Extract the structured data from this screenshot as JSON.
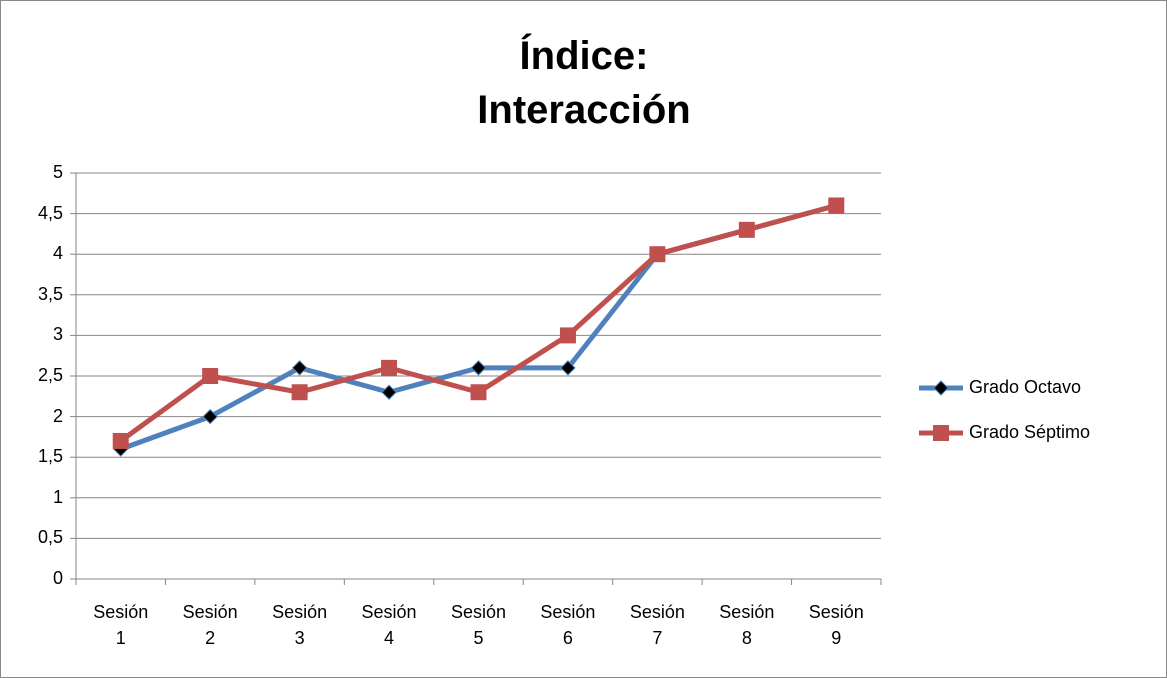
{
  "chart_data": {
    "type": "line",
    "title": "Índice: Interacción",
    "categories": [
      "Sesión 1",
      "Sesión 2",
      "Sesión 3",
      "Sesión 4",
      "Sesión 5",
      "Sesión 6",
      "Sesión 7",
      "Sesión 8",
      "Sesión 9"
    ],
    "series": [
      {
        "name": "Grado Octavo",
        "color": "#4f81bd",
        "marker": "diamond",
        "values": [
          1.6,
          2.0,
          2.6,
          2.3,
          2.6,
          2.6,
          4.0,
          4.3,
          4.6
        ]
      },
      {
        "name": "Grado Séptimo",
        "color": "#c0504d",
        "marker": "square",
        "values": [
          1.7,
          2.5,
          2.3,
          2.6,
          2.3,
          3.0,
          4.0,
          4.3,
          4.6
        ]
      }
    ],
    "ylim": [
      0,
      5
    ],
    "yticks": [
      0,
      {
        "value": 0.5,
        "label": "0,5"
      },
      1,
      {
        "value": 1.5,
        "label": "1,5"
      },
      2,
      {
        "value": 2.5,
        "label": "2,5"
      },
      3,
      {
        "value": 3.5,
        "label": "3,5"
      },
      4,
      {
        "value": 4.5,
        "label": "4,5"
      },
      5
    ],
    "grid": true,
    "legend": "right"
  }
}
